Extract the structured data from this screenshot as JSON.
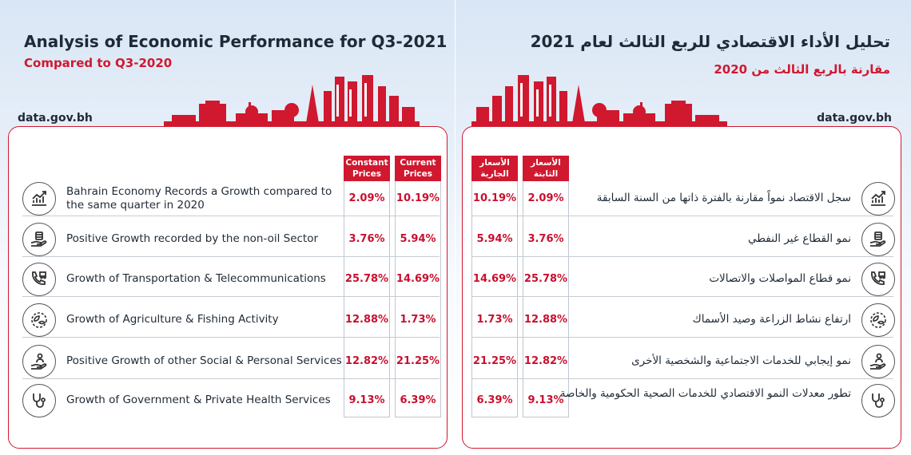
{
  "english": {
    "title": "Analysis of Economic Performance for Q3-2021",
    "subtitle": "Compared to Q3-2020",
    "site": "data.gov.bh",
    "columns": {
      "constant": "Constant Prices",
      "current": "Current Prices"
    },
    "rows": [
      {
        "label": "Bahrain Economy Records a Growth compared to the same quarter in 2020",
        "constant": "2.09%",
        "current": "10.19%",
        "icon": "growth-chart-icon"
      },
      {
        "label": "Positive Growth recorded by the non-oil Sector",
        "constant": "3.76%",
        "current": "5.94%",
        "icon": "hand-barrel-icon"
      },
      {
        "label": "Growth of Transportation & Telecommunications",
        "constant": "25.78%",
        "current": "14.69%",
        "icon": "phone-truck-icon"
      },
      {
        "label": "Growth of Agriculture & Fishing Activity",
        "constant": "12.88%",
        "current": "1.73%",
        "icon": "leaf-fish-icon"
      },
      {
        "label": "Positive Growth of other Social & Personal Services",
        "constant": "12.82%",
        "current": "21.25%",
        "icon": "hand-person-icon"
      },
      {
        "label": "Growth of Government & Private Health Services",
        "constant": "9.13%",
        "current": "6.39%",
        "icon": "stethoscope-icon"
      }
    ]
  },
  "arabic": {
    "title": "تحليل الأداء الاقتصادي للربع الثالث لعام 2021",
    "subtitle": "مقارنة بالربع الثالث من 2020",
    "site": "data.gov.bh",
    "columns": {
      "constant": "الأسعار الثابتة",
      "current": "الأسعار الجارية"
    },
    "rows": [
      {
        "label": "سجل الاقتصاد نمواً مقارنة بالفترة ذاتها من السنة السابقة",
        "constant": "2.09%",
        "current": "10.19%",
        "icon": "growth-chart-icon"
      },
      {
        "label": "نمو القطاع غير النفطي",
        "constant": "3.76%",
        "current": "5.94%",
        "icon": "hand-barrel-icon"
      },
      {
        "label": "نمو قطاع المواصلات والاتصالات",
        "constant": "25.78%",
        "current": "14.69%",
        "icon": "phone-truck-icon"
      },
      {
        "label": "ارتفاع نشاط الزراعة وصيد الأسماك",
        "constant": "12.88%",
        "current": "1.73%",
        "icon": "leaf-fish-icon"
      },
      {
        "label": "نمو إيجابي للخدمات الاجتماعية والشخصية الأخرى",
        "constant": "12.82%",
        "current": "21.25%",
        "icon": "hand-person-icon"
      },
      {
        "label": "تطور معدلات النمو الاقتصادي للخدمات الصحية الحكومية والخاصة",
        "constant": "9.13%",
        "current": "6.39%",
        "icon": "stethoscope-icon"
      }
    ]
  },
  "colors": {
    "accent": "#d0182f",
    "value": "#c8102e",
    "text": "#1f2a36"
  }
}
